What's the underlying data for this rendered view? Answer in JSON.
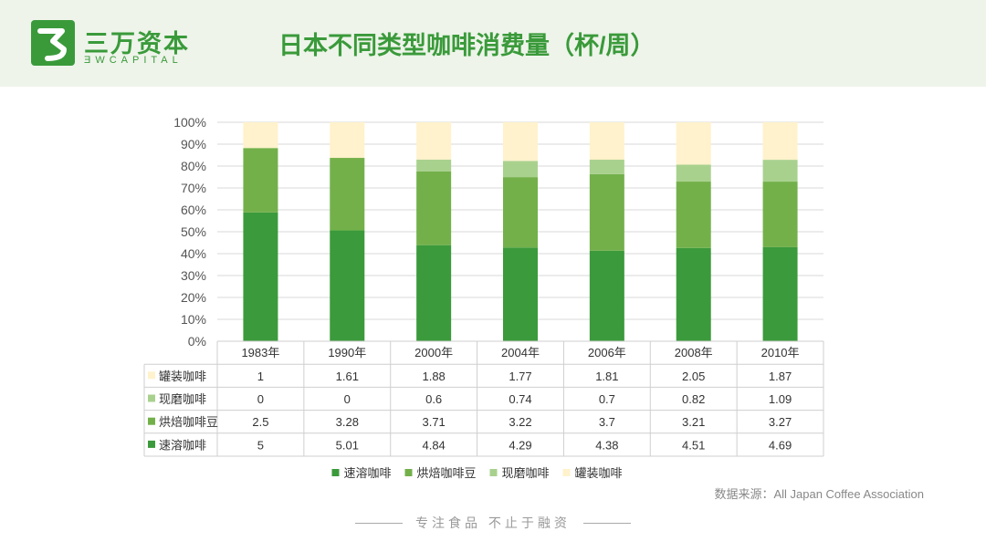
{
  "brand": {
    "name_cn": "三万资本",
    "name_en": "ƎWCAPITAL"
  },
  "page": {
    "title": "日本不同类型咖啡消费量（杯/周）",
    "source": "数据来源：All Japan Coffee Association",
    "slogan": "专注食品  不止于融资"
  },
  "colors": {
    "header_bg": "#eef4ea",
    "brand_green": "#3a9a3a"
  },
  "chart_data": {
    "type": "bar",
    "stacked": "percent",
    "categories": [
      "1983年",
      "1990年",
      "2000年",
      "2004年",
      "2006年",
      "2008年",
      "2010年"
    ],
    "y_ticks": [
      "0%",
      "10%",
      "20%",
      "30%",
      "40%",
      "50%",
      "60%",
      "70%",
      "80%",
      "90%",
      "100%"
    ],
    "ylim": [
      0,
      100
    ],
    "grid": true,
    "legend_position": "bottom",
    "series": [
      {
        "name": "速溶咖啡",
        "color": "#3b9a3b",
        "values": [
          5,
          5.01,
          4.84,
          4.29,
          4.38,
          4.51,
          4.69
        ]
      },
      {
        "name": "烘焙咖啡豆",
        "color": "#73b04a",
        "values": [
          2.5,
          3.28,
          3.71,
          3.22,
          3.7,
          3.21,
          3.27
        ]
      },
      {
        "name": "现磨咖啡",
        "color": "#a9d18e",
        "values": [
          0,
          0,
          0.6,
          0.74,
          0.7,
          0.82,
          1.09
        ]
      },
      {
        "name": "罐装咖啡",
        "color": "#fff2cc",
        "values": [
          1,
          1.61,
          1.88,
          1.77,
          1.81,
          2.05,
          1.87
        ]
      }
    ],
    "table": {
      "rows": [
        {
          "name": "罐装咖啡",
          "color": "#fff2cc",
          "values": [
            "1",
            "1.61",
            "1.88",
            "1.77",
            "1.81",
            "2.05",
            "1.87"
          ]
        },
        {
          "name": "现磨咖啡",
          "color": "#a9d18e",
          "values": [
            "0",
            "0",
            "0.6",
            "0.74",
            "0.7",
            "0.82",
            "1.09"
          ]
        },
        {
          "name": "烘焙咖啡豆",
          "color": "#73b04a",
          "values": [
            "2.5",
            "3.28",
            "3.71",
            "3.22",
            "3.7",
            "3.21",
            "3.27"
          ]
        },
        {
          "name": "速溶咖啡",
          "color": "#3b9a3b",
          "values": [
            "5",
            "5.01",
            "4.84",
            "4.29",
            "4.38",
            "4.51",
            "4.69"
          ]
        }
      ]
    }
  }
}
